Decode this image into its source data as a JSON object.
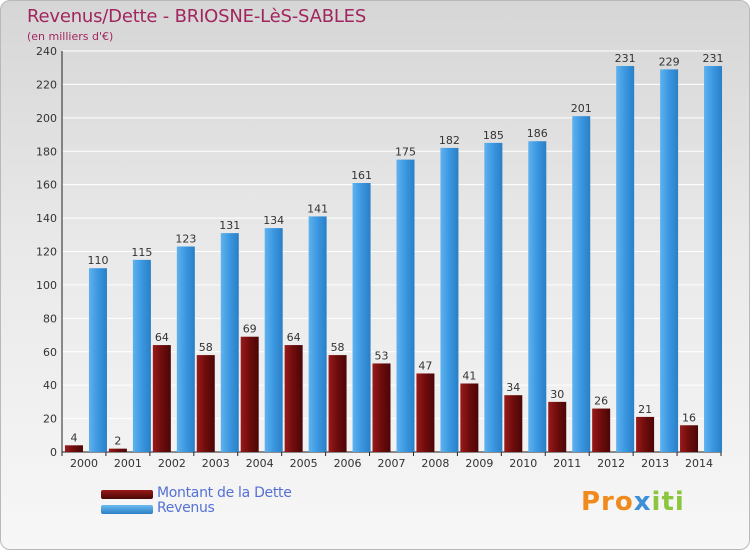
{
  "title": "Revenus/Dette - BRIOSNE-LèS-SABLES",
  "subtitle": "(en milliers d'€)",
  "colors": {
    "dette": "#6e0c0c",
    "revenus": "#3a97e0",
    "title": "#a0265f",
    "legend_text": "#5571d6"
  },
  "legend": {
    "dette_label": "Montant de la Dette",
    "revenus_label": "Revenus"
  },
  "logo": {
    "text": "Proxiti"
  },
  "chart_data": {
    "type": "bar",
    "categories": [
      "2000",
      "2001",
      "2002",
      "2003",
      "2004",
      "2005",
      "2006",
      "2007",
      "2008",
      "2009",
      "2010",
      "2011",
      "2012",
      "2013",
      "2014"
    ],
    "series": [
      {
        "name": "Montant de la Dette",
        "values": [
          4,
          2,
          64,
          58,
          69,
          64,
          58,
          53,
          47,
          41,
          34,
          30,
          26,
          21,
          16
        ]
      },
      {
        "name": "Revenus",
        "values": [
          110,
          115,
          123,
          131,
          134,
          141,
          161,
          175,
          182,
          185,
          186,
          201,
          231,
          229,
          231
        ]
      }
    ],
    "ylim": [
      0,
      240
    ],
    "yticks": [
      0,
      20,
      40,
      60,
      80,
      100,
      120,
      140,
      160,
      180,
      200,
      220,
      240
    ],
    "grid": true
  }
}
